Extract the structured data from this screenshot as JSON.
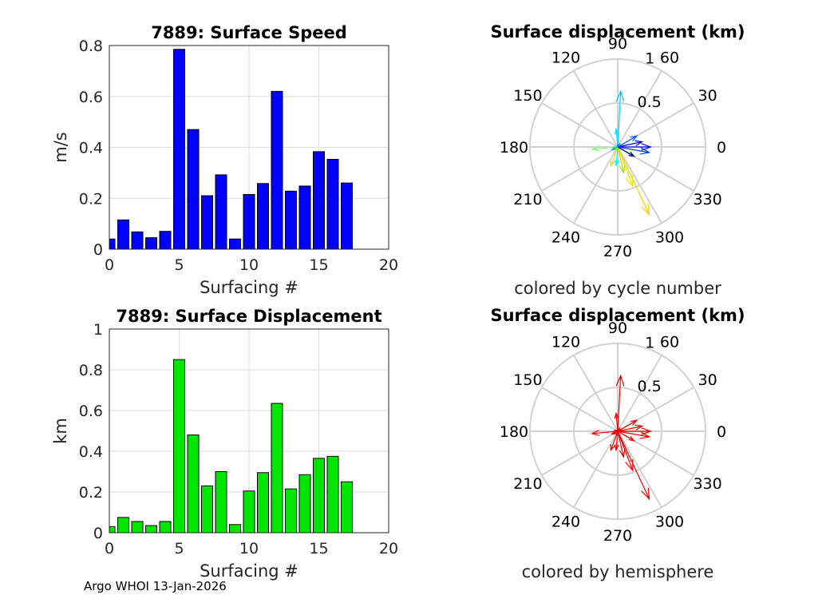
{
  "footer": "Argo WHOI 13-Jan-2026",
  "chart_data": [
    {
      "type": "bar",
      "title": "7889: Surface Speed",
      "xlabel": "Surfacing #",
      "ylabel": "m/s",
      "xlim": [
        0,
        20
      ],
      "ylim": [
        0,
        0.8
      ],
      "xticks": [
        "0",
        "5",
        "10",
        "15",
        "20"
      ],
      "yticks": [
        "0",
        "0.2",
        "0.4",
        "0.6",
        "0.8"
      ],
      "grid": true,
      "color": "#0000ff",
      "x": [
        0,
        1,
        2,
        3,
        4,
        5,
        6,
        7,
        8,
        9,
        10,
        11,
        12,
        13,
        14,
        15,
        16,
        17
      ],
      "values": [
        0.04,
        0.115,
        0.068,
        0.045,
        0.07,
        0.785,
        0.47,
        0.21,
        0.292,
        0.04,
        0.215,
        0.258,
        0.62,
        0.228,
        0.248,
        0.383,
        0.353,
        0.26
      ]
    },
    {
      "type": "bar",
      "title": "7889: Surface Displacement",
      "xlabel": "Surfacing #",
      "ylabel": "km",
      "xlim": [
        0,
        20
      ],
      "ylim": [
        0,
        1
      ],
      "xticks": [
        "0",
        "5",
        "10",
        "15",
        "20"
      ],
      "yticks": [
        "0",
        "0.2",
        "0.4",
        "0.6",
        "0.8",
        "1"
      ],
      "grid": true,
      "color": "#00e600",
      "x": [
        0,
        1,
        2,
        3,
        4,
        5,
        6,
        7,
        8,
        9,
        10,
        11,
        12,
        13,
        14,
        15,
        16,
        17
      ],
      "values": [
        0.03,
        0.075,
        0.055,
        0.035,
        0.055,
        0.85,
        0.48,
        0.23,
        0.3,
        0.04,
        0.205,
        0.295,
        0.635,
        0.215,
        0.285,
        0.365,
        0.375,
        0.25
      ]
    },
    {
      "type": "polar-compass",
      "title": "Surface displacement (km)",
      "caption": "colored by cycle number",
      "rmax": 1,
      "rings": [
        "0.5",
        "1"
      ],
      "angle_labels": [
        "0",
        "30",
        "60",
        "90",
        "120",
        "150",
        "180",
        "210",
        "240",
        "270",
        "300",
        "330"
      ],
      "vectors": [
        {
          "r": 0.85,
          "theta": 295,
          "color": "#ffcc00"
        },
        {
          "r": 0.48,
          "theta": 291,
          "color": "#e6e600"
        },
        {
          "r": 0.3,
          "theta": 283,
          "color": "#a8e000"
        },
        {
          "r": 0.23,
          "theta": 250,
          "color": "#ffd400"
        },
        {
          "r": 0.055,
          "theta": 200,
          "color": "#c8f000"
        },
        {
          "r": 0.635,
          "theta": 87,
          "color": "#00c8ff"
        },
        {
          "r": 0.205,
          "theta": 95,
          "color": "#00e0ff"
        },
        {
          "r": 0.295,
          "theta": 185,
          "color": "#80ff80"
        },
        {
          "r": 0.215,
          "theta": 265,
          "color": "#00ffff"
        },
        {
          "r": 0.375,
          "theta": 0,
          "color": "#0010ff"
        },
        {
          "r": 0.365,
          "theta": 350,
          "color": "#0040ff"
        },
        {
          "r": 0.285,
          "theta": 12,
          "color": "#0000c0"
        },
        {
          "r": 0.25,
          "theta": 30,
          "color": "#0060ff"
        },
        {
          "r": 0.035,
          "theta": 160,
          "color": "#40ffc0"
        },
        {
          "r": 0.075,
          "theta": 205,
          "color": "#00c0a0"
        },
        {
          "r": 0.04,
          "theta": 60,
          "color": "#0080ff"
        },
        {
          "r": 0.215,
          "theta": 330,
          "color": "#000090"
        }
      ]
    },
    {
      "type": "polar-compass",
      "title": "Surface displacement (km)",
      "caption": "colored by hemisphere",
      "rmax": 1,
      "rings": [
        "0.5",
        "1"
      ],
      "angle_labels": [
        "0",
        "30",
        "60",
        "90",
        "120",
        "150",
        "180",
        "210",
        "240",
        "270",
        "300",
        "330"
      ],
      "vectors": [
        {
          "r": 0.85,
          "theta": 295,
          "color": "#ee0000"
        },
        {
          "r": 0.48,
          "theta": 291,
          "color": "#ee0000"
        },
        {
          "r": 0.3,
          "theta": 283,
          "color": "#ee0000"
        },
        {
          "r": 0.23,
          "theta": 250,
          "color": "#ee0000"
        },
        {
          "r": 0.055,
          "theta": 200,
          "color": "#ee0000"
        },
        {
          "r": 0.635,
          "theta": 87,
          "color": "#ee0000"
        },
        {
          "r": 0.205,
          "theta": 95,
          "color": "#ee0000"
        },
        {
          "r": 0.295,
          "theta": 185,
          "color": "#ee0000"
        },
        {
          "r": 0.215,
          "theta": 265,
          "color": "#ee0000"
        },
        {
          "r": 0.375,
          "theta": 0,
          "color": "#ee0000"
        },
        {
          "r": 0.365,
          "theta": 350,
          "color": "#ee0000"
        },
        {
          "r": 0.285,
          "theta": 12,
          "color": "#ee0000"
        },
        {
          "r": 0.25,
          "theta": 30,
          "color": "#ee0000"
        },
        {
          "r": 0.035,
          "theta": 160,
          "color": "#ee0000"
        },
        {
          "r": 0.075,
          "theta": 205,
          "color": "#ee0000"
        },
        {
          "r": 0.04,
          "theta": 60,
          "color": "#ee0000"
        },
        {
          "r": 0.215,
          "theta": 330,
          "color": "#ee0000"
        }
      ]
    }
  ]
}
